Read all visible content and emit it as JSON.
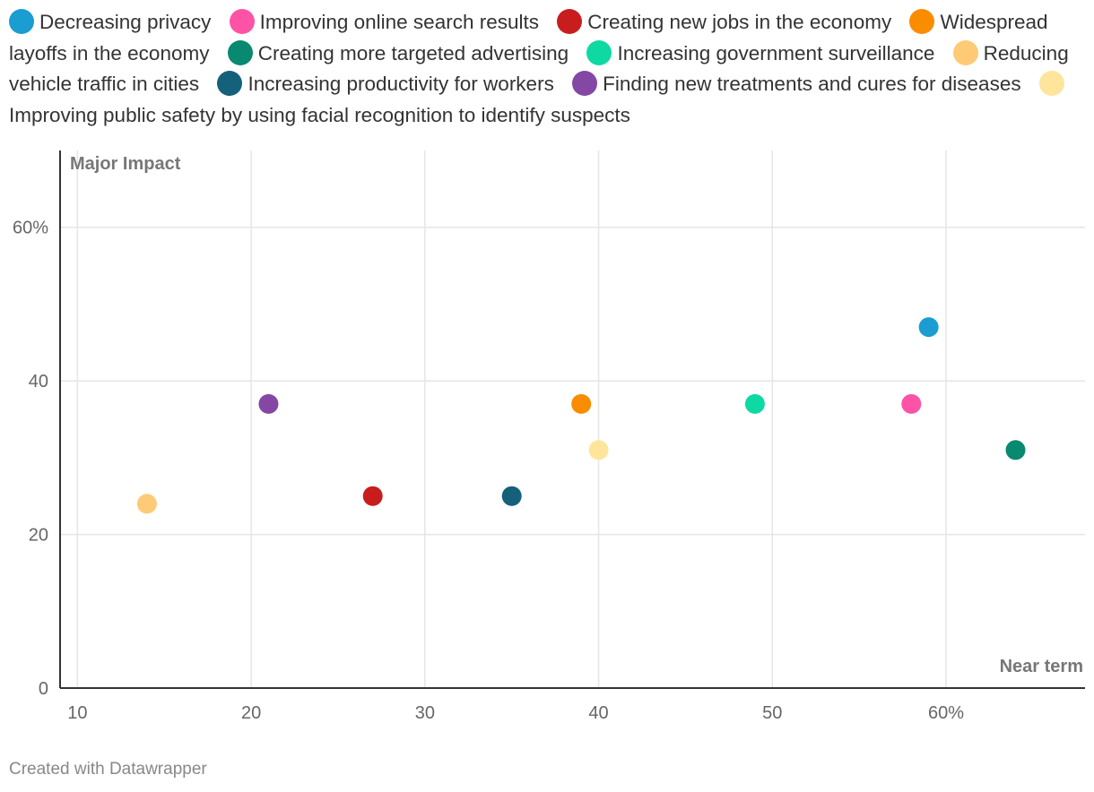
{
  "chart_data": {
    "type": "scatter",
    "xlabel": "Near term",
    "ylabel": "Major Impact",
    "xlim": [
      9,
      68
    ],
    "ylim": [
      0,
      70
    ],
    "x_ticks": [
      {
        "value": 10,
        "label": "10"
      },
      {
        "value": 20,
        "label": "20"
      },
      {
        "value": 30,
        "label": "30"
      },
      {
        "value": 40,
        "label": "40"
      },
      {
        "value": 50,
        "label": "50"
      },
      {
        "value": 60,
        "label": "60%"
      }
    ],
    "y_ticks": [
      {
        "value": 0,
        "label": "0"
      },
      {
        "value": 20,
        "label": "20"
      },
      {
        "value": 40,
        "label": "40"
      },
      {
        "value": 60,
        "label": "60%"
      }
    ],
    "series": [
      {
        "name": "Decreasing privacy",
        "color": "#1a9dd0",
        "x": 59,
        "y": 47
      },
      {
        "name": "Improving online search results",
        "color": "#fd53a6",
        "x": 58,
        "y": 37
      },
      {
        "name": "Creating new jobs in the economy",
        "color": "#c71e1d",
        "x": 27,
        "y": 25
      },
      {
        "name": "Widespread layoffs in the economy",
        "color": "#fa8c00",
        "x": 39,
        "y": 37
      },
      {
        "name": "Creating more targeted advertising",
        "color": "#09896f",
        "x": 64,
        "y": 31
      },
      {
        "name": "Increasing government surveillance",
        "color": "#0fd9a3",
        "x": 49,
        "y": 37
      },
      {
        "name": "Reducing vehicle traffic in cities",
        "color": "#ffca76",
        "x": 14,
        "y": 24
      },
      {
        "name": "Increasing productivity for workers",
        "color": "#15607a",
        "x": 35,
        "y": 25
      },
      {
        "name": "Finding new treatments and cures for diseases",
        "color": "#8547a4",
        "x": 21,
        "y": 37
      },
      {
        "name": "Improving public safety by using facial recognition to identify suspects",
        "color": "#ffe59c",
        "x": 40,
        "y": 31
      }
    ]
  },
  "footer": {
    "credit": "Created with Datawrapper"
  }
}
